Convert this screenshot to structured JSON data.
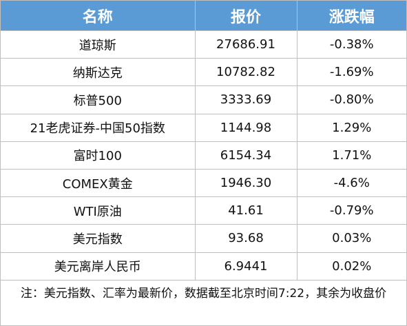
{
  "table": {
    "header": [
      "名称",
      "报价",
      "涨跌幅"
    ],
    "rows": [
      [
        "道琼斯",
        "27686.91",
        "-0.38%"
      ],
      [
        "纳斯达克",
        "10782.82",
        "-1.69%"
      ],
      [
        "标普500",
        "3333.69",
        "-0.80%"
      ],
      [
        "21老虎证券-中国50指数",
        "1144.98",
        "1.29%"
      ],
      [
        "富时100",
        "6154.34",
        "1.71%"
      ],
      [
        "COMEX黄金",
        "1946.30",
        "-4.6%"
      ],
      [
        "WTI原油",
        "41.61",
        "-0.79%"
      ],
      [
        "美元指数",
        "93.68",
        "0.03%"
      ],
      [
        "美元离岸人民币",
        "6.9441",
        "0.02%"
      ]
    ],
    "note": "注：美元指数、汇率为最新价，数据截至北京时间7:22，其余为收盘价"
  }
}
